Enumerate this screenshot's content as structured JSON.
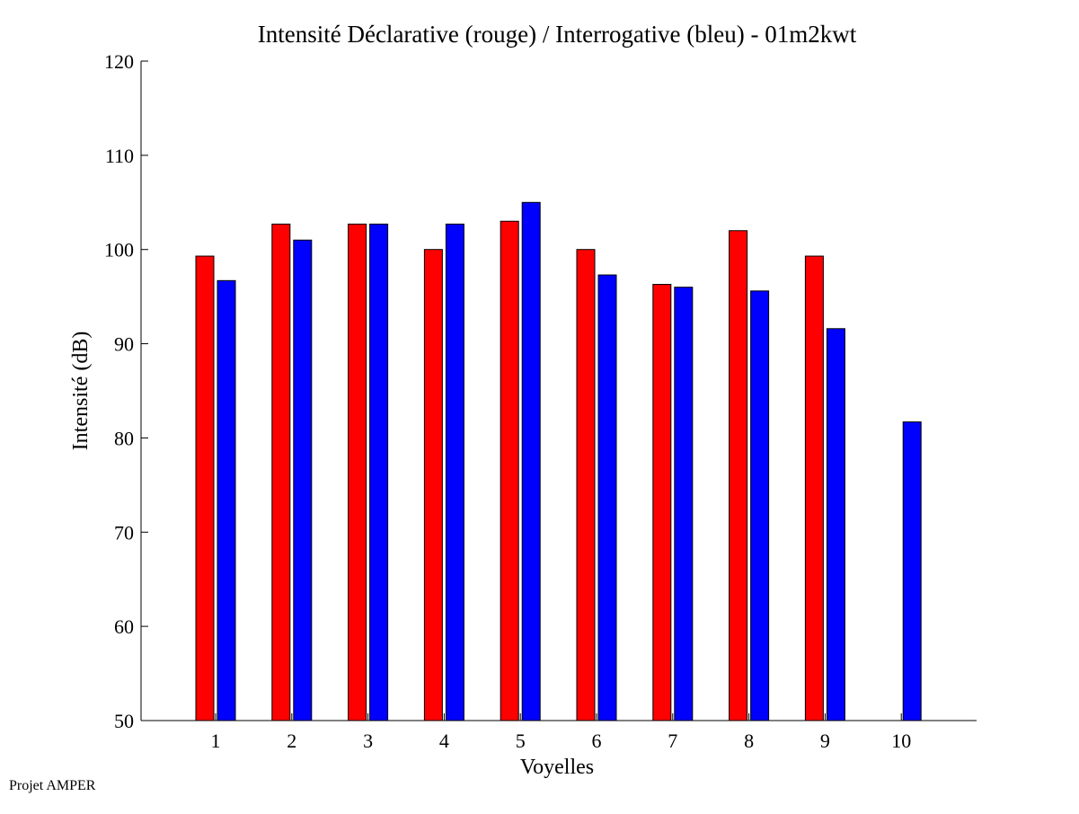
{
  "chart_data": {
    "type": "bar",
    "title": "Intensité Déclarative (rouge) / Interrogative (bleu) - 01m2kwt",
    "xlabel": "Voyelles",
    "ylabel": "Intensité (dB)",
    "categories": [
      "1",
      "2",
      "3",
      "4",
      "5",
      "6",
      "7",
      "8",
      "9",
      "10"
    ],
    "series": [
      {
        "color": "#ff0000",
        "values": [
          99.3,
          102.7,
          102.7,
          100.0,
          103.0,
          100.0,
          96.3,
          102.0,
          99.3,
          null
        ]
      },
      {
        "color": "#0000ff",
        "values": [
          96.7,
          101.0,
          102.7,
          102.7,
          105.0,
          97.3,
          96.0,
          95.6,
          91.6,
          81.7
        ]
      }
    ],
    "ylim": [
      50,
      120
    ],
    "yticks": [
      "50",
      "60",
      "70",
      "80",
      "90",
      "100",
      "110",
      "120"
    ],
    "grid": false,
    "legend": "none"
  },
  "footer": {
    "credit": "Projet AMPER"
  }
}
